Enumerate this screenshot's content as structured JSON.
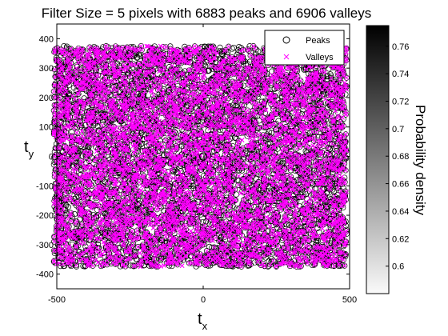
{
  "chart_data": {
    "type": "scatter",
    "title": "Filter Size = 5 pixels with 6883 peaks and 6906 valleys",
    "xlabel": {
      "main": "t",
      "sub": "x"
    },
    "ylabel": {
      "main": "t",
      "sub": "y"
    },
    "xlim": [
      -500,
      500
    ],
    "ylim": [
      -450,
      450
    ],
    "xticks": [
      -500,
      0,
      500
    ],
    "yticks": [
      -400,
      -300,
      -200,
      -100,
      0,
      100,
      200,
      300,
      400
    ],
    "point_extent": {
      "x": [
        -510,
        490
      ],
      "y": [
        -375,
        375
      ]
    },
    "series": [
      {
        "name": "Peaks",
        "marker": "circle",
        "color": "#000000",
        "count": 6883
      },
      {
        "name": "Valleys",
        "marker": "x",
        "color": "#ff00ff",
        "count": 6906
      }
    ],
    "legend_position": "top-right",
    "colorbar": {
      "label": "Probability density",
      "range": [
        0.58,
        0.775
      ],
      "ticks": [
        0.6,
        0.62,
        0.64,
        0.66,
        0.68,
        0.7,
        0.72,
        0.74,
        0.76
      ],
      "tick_labels": [
        "0.6",
        "0.62",
        "0.64",
        "0.66",
        "0.68",
        "0.7",
        "0.72",
        "0.74",
        "0.76"
      ]
    }
  }
}
